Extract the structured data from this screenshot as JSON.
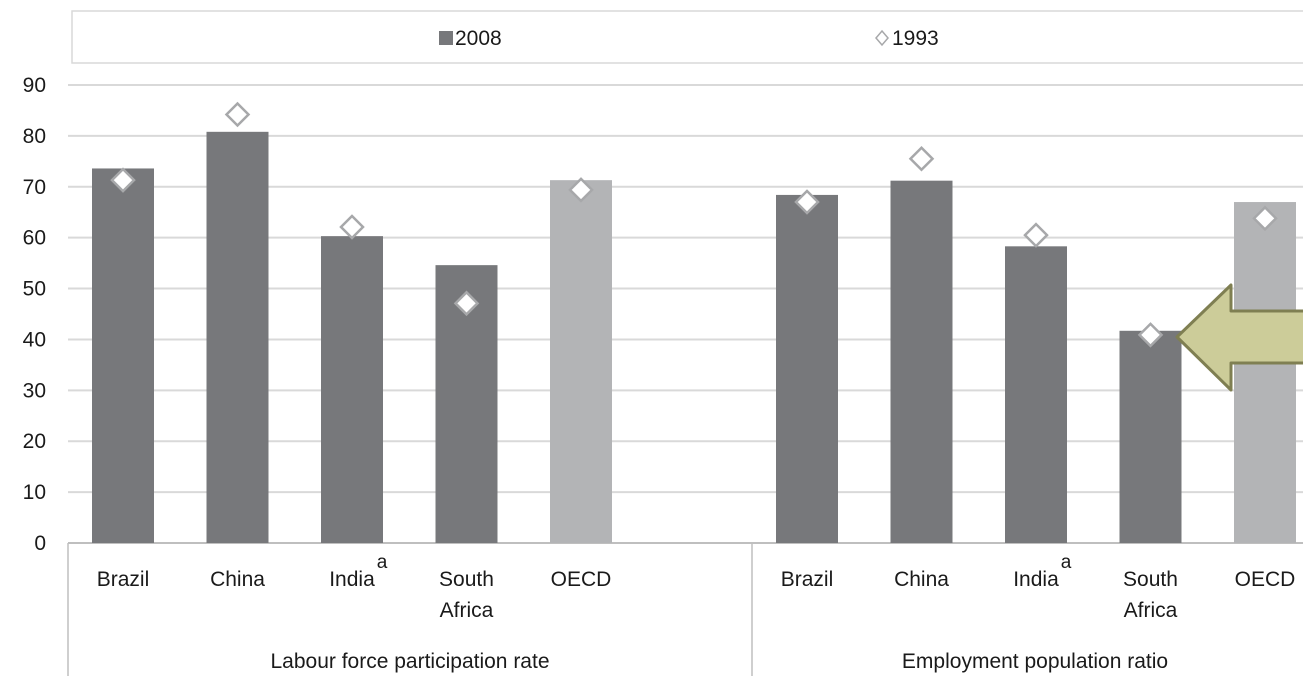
{
  "chart_data": {
    "type": "bar",
    "ylim": [
      0,
      90
    ],
    "yticks": [
      "0",
      "10",
      "20",
      "30",
      "40",
      "50",
      "60",
      "70",
      "80",
      "90"
    ],
    "grid": true,
    "legend_position": "top",
    "colors": {
      "bar_2008": "#77787b",
      "bar_oecd": "#b3b4b6",
      "marker_stroke": "#a7a8aa",
      "grid": "#d9d9d9",
      "axis": "#bfbfbf",
      "arrow_fill": "#cccc99",
      "arrow_stroke": "#7f7f52"
    },
    "series": [
      {
        "name": "2008",
        "kind": "bar"
      },
      {
        "name": "1993",
        "kind": "marker",
        "marker": "diamond"
      }
    ],
    "groups": [
      {
        "label": "Labour force participation rate",
        "categories": [
          {
            "label": [
              "Brazil"
            ],
            "sup": "",
            "v2008": 73.6,
            "v1993": 71.3,
            "highlight": false
          },
          {
            "label": [
              "China"
            ],
            "sup": "",
            "v2008": 80.8,
            "v1993": 84.2,
            "highlight": false
          },
          {
            "label": [
              "India"
            ],
            "sup": "a",
            "v2008": 60.3,
            "v1993": 62.1,
            "highlight": false
          },
          {
            "label": [
              "South",
              "Africa"
            ],
            "sup": "",
            "v2008": 54.6,
            "v1993": 47.1,
            "highlight": false
          },
          {
            "label": [
              "OECD"
            ],
            "sup": "",
            "v2008": 71.3,
            "v1993": 69.4,
            "highlight": true
          }
        ]
      },
      {
        "label": "Employment population ratio",
        "categories": [
          {
            "label": [
              "Brazil"
            ],
            "sup": "",
            "v2008": 68.4,
            "v1993": 67.0,
            "highlight": false
          },
          {
            "label": [
              "China"
            ],
            "sup": "",
            "v2008": 71.2,
            "v1993": 75.5,
            "highlight": false
          },
          {
            "label": [
              "India"
            ],
            "sup": "a",
            "v2008": 58.3,
            "v1993": 60.5,
            "highlight": false
          },
          {
            "label": [
              "South",
              "Africa"
            ],
            "sup": "",
            "v2008": 41.7,
            "v1993": 40.9,
            "highlight": false
          },
          {
            "label": [
              "OECD"
            ],
            "sup": "",
            "v2008": 67.0,
            "v1993": 63.8,
            "highlight": true
          }
        ]
      }
    ],
    "annotation": {
      "type": "arrow",
      "points_to": "South Africa - Employment population ratio"
    }
  }
}
